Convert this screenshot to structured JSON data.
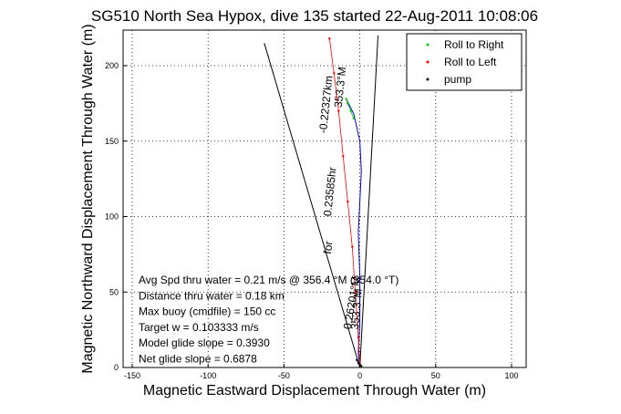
{
  "chart_data": {
    "type": "line",
    "title": "SG510 North Sea Hypox, dive 135 started 22-Aug-2011 10:08:06",
    "xlabel": "Magnetic Eastward Displacement Through Water (m)",
    "ylabel": "Magnetic Northward Displacement Through Water (m)",
    "xlim": [
      -150,
      100
    ],
    "ylim": [
      0,
      220
    ],
    "xticks": [
      -150,
      -100,
      -50,
      0,
      50,
      100
    ],
    "yticks": [
      0,
      50,
      100,
      150,
      200
    ],
    "grid": true,
    "legend_position": "top-right",
    "series": [
      {
        "name": "Roll to Right",
        "color": "#00cc00",
        "marker": "dot",
        "x": [
          -4,
          -6,
          -8,
          -9
        ],
        "y": [
          165,
          170,
          175,
          178
        ]
      },
      {
        "name": "Roll to Left",
        "color": "#ff0000",
        "marker": "dot",
        "x": [
          -20,
          -17,
          -14,
          -11,
          -8,
          -5,
          -3,
          -1,
          0
        ],
        "y": [
          218,
          195,
          170,
          140,
          110,
          80,
          50,
          20,
          2
        ]
      },
      {
        "name": "pump",
        "color": "#000000",
        "marker": "dot",
        "x": [
          -2,
          -1,
          0,
          1
        ],
        "y": [
          5,
          3,
          2,
          1
        ]
      }
    ],
    "track": {
      "color": "#0000cc",
      "x": [
        -9,
        -6,
        -4,
        0,
        1,
        0,
        -1,
        0,
        0,
        -1,
        0
      ],
      "y": [
        178,
        172,
        168,
        150,
        130,
        110,
        90,
        60,
        30,
        10,
        0
      ]
    },
    "guide_lines": [
      {
        "x": [
          0,
          -63
        ],
        "y": [
          0,
          215
        ]
      },
      {
        "x": [
          0,
          12
        ],
        "y": [
          0,
          220
        ]
      }
    ],
    "rotated_labels": [
      {
        "text": "353.3°M",
        "x": -12,
        "y": 172,
        "angle": -84
      },
      {
        "text": "-0.22327km",
        "x": -22,
        "y": 155,
        "angle": -84
      },
      {
        "text": "0.23585hr",
        "x": -19,
        "y": 100,
        "angle": -84
      },
      {
        "text": "for",
        "x": -19,
        "y": 75,
        "angle": -84
      },
      {
        "text": "0.26201°M",
        "x": -6,
        "y": 25,
        "angle": -80
      },
      {
        "text": "353.3°M",
        "x": -1,
        "y": 25,
        "angle": -85
      }
    ],
    "annotations": [
      "Avg Spd thru water =  0.21 m/s @ 356.4   °M (354.0 °T)",
      "Distance thru water =  0.18 km",
      "Max buoy (cmdfile) = 150 cc",
      "Target w = 0.103333 m/s",
      "Model glide slope = 0.3930",
      "Net glide slope = 0.6878"
    ]
  }
}
